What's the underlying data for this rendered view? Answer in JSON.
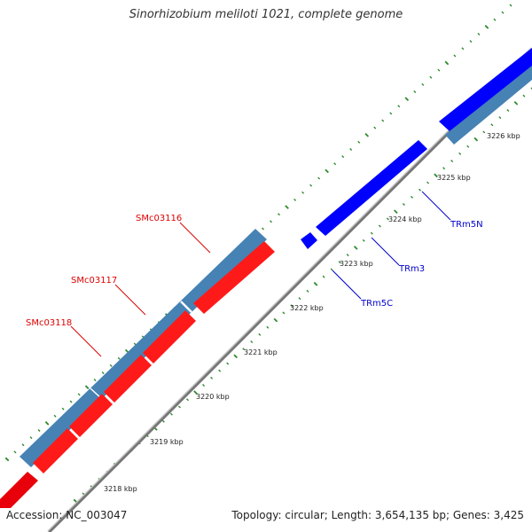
{
  "title": "Sinorhizobium meliloti 1021, complete genome",
  "footer": {
    "accession": "Accession: NC_003047",
    "summary": "Topology: circular; Length: 3,654,135 bp; Genes: 3,425"
  },
  "colors": {
    "backbone": "#8a8a8a",
    "tick": "#2e8b2e",
    "forward_gene": "#0000ff",
    "reverse_gene": "#ff0000",
    "cds_bar": "#4682b4",
    "label_forward": "#0000cc",
    "label_reverse": "#dd0000"
  },
  "scale_labels": [
    "3218 kbp",
    "3219 kbp",
    "3220 kbp",
    "3221 kbp",
    "3222 kbp",
    "3223 kbp",
    "3224 kbp",
    "3225 kbp",
    "3226 kbp"
  ],
  "gene_labels": {
    "forward": [
      "TRm5N",
      "TRm3",
      "TRm5C"
    ],
    "reverse": [
      "SMc03116",
      "SMc03117",
      "SMc03118"
    ]
  }
}
